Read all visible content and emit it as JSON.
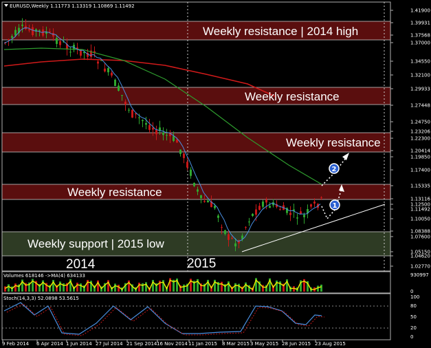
{
  "main_header": "EURUSD,Weekly  1.11773 1.13319 1.10869 1.11492",
  "volume_header": "Volumes 618146  ->MA(4) 634133",
  "stoch_header": "Stoch(14,3,3) 52.0898 53.5615",
  "price_axis": [
    "1.41900",
    "1.39931",
    "1.37568",
    "1.37000",
    "1.34550",
    "1.32100",
    "1.29933",
    "1.27448",
    "1.24750",
    "1.23206",
    "1.22300",
    "1.19850",
    "1.20414",
    "1.17400",
    "1.15335",
    "1.13116",
    "1.12500",
    "1.11492",
    "1.10050",
    "1.08388",
    "1.07600",
    "1.05150",
    "1.04620",
    "1.02770"
  ],
  "volume_axis": [
    "930997",
    "0"
  ],
  "stoch_axis": [
    "100",
    "80",
    "50",
    "20",
    "0"
  ],
  "time_axis": [
    "9 Feb 2014",
    "6 Apr 2014",
    "1 Jun 2014",
    "27 Jul 2014",
    "21 Sep 2014",
    "16 Nov 2014",
    "11 Jan 2015",
    "8 Mar 2015",
    "3 May 2015",
    "28 Jun 2015",
    "23 Aug 2015"
  ],
  "zones": {
    "weekly_resistance_2014_high": "Weekly resistance | 2014 high",
    "weekly_resistance_upper": "Weekly resistance",
    "weekly_resistance_middle": "Weekly resistance",
    "weekly_resistance_lower": "Weekly resistance",
    "weekly_support_2015_low": "Weekly support | 2015 low"
  },
  "years": {
    "left": "2014",
    "right": "2015"
  },
  "markers": {
    "one": "1",
    "two": "2"
  },
  "colors": {
    "resistance_zone": "#5a0e0e",
    "support_zone": "#2e3b24",
    "bull_candle": "#2fa82f",
    "bear_candle": "#c81818",
    "ma_fast": "#4a90e2",
    "ma_medium": "#2e9c2e",
    "ma_slow": "#d01a1a",
    "volume_ma": "#e6e600",
    "marker": "#2a5fd0"
  }
}
